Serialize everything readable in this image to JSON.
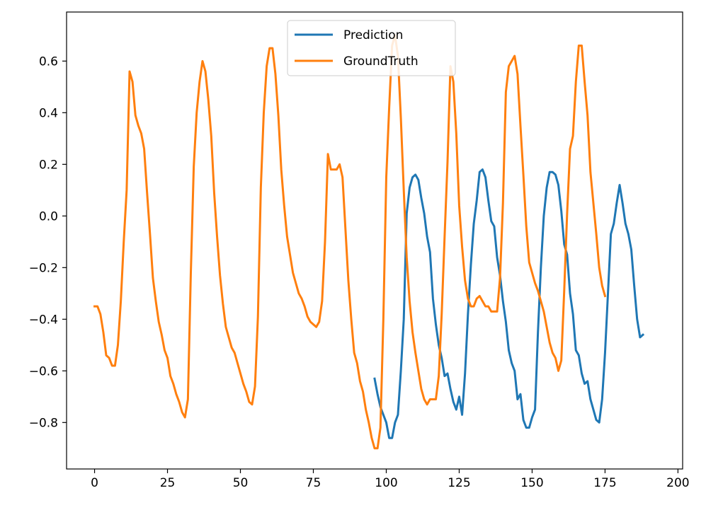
{
  "chart_data": {
    "type": "line",
    "title": "",
    "xlabel": "",
    "ylabel": "",
    "xlim": [
      -9.6,
      201.6
    ],
    "ylim": [
      -0.98,
      0.79
    ],
    "xticks": [
      0,
      25,
      50,
      75,
      100,
      125,
      150,
      175,
      200
    ],
    "yticks": [
      -0.8,
      -0.6,
      -0.4,
      -0.2,
      0.0,
      0.2,
      0.4,
      0.6
    ],
    "xtick_labels": [
      "0",
      "25",
      "50",
      "75",
      "100",
      "125",
      "150",
      "175",
      "200"
    ],
    "ytick_labels": [
      "−0.8",
      "−0.6",
      "−0.4",
      "−0.2",
      "0.0",
      "0.2",
      "0.4",
      "0.6"
    ],
    "grid": false,
    "legend": {
      "placement": "top-center"
    },
    "series": [
      {
        "name": "Prediction",
        "color": "#1f77b4",
        "points": [
          [
            96,
            -0.63
          ],
          [
            97,
            -0.69
          ],
          [
            98,
            -0.74
          ],
          [
            99,
            -0.77
          ],
          [
            100,
            -0.8
          ],
          [
            101,
            -0.86
          ],
          [
            102,
            -0.86
          ],
          [
            103,
            -0.8
          ],
          [
            104,
            -0.77
          ],
          [
            105,
            -0.6
          ],
          [
            106,
            -0.4
          ],
          [
            107,
            0.01
          ],
          [
            108,
            0.11
          ],
          [
            109,
            0.15
          ],
          [
            110,
            0.16
          ],
          [
            111,
            0.14
          ],
          [
            112,
            0.07
          ],
          [
            113,
            0.01
          ],
          [
            114,
            -0.08
          ],
          [
            115,
            -0.14
          ],
          [
            116,
            -0.32
          ],
          [
            117,
            -0.42
          ],
          [
            118,
            -0.5
          ],
          [
            119,
            -0.55
          ],
          [
            120,
            -0.62
          ],
          [
            121,
            -0.61
          ],
          [
            122,
            -0.67
          ],
          [
            123,
            -0.72
          ],
          [
            124,
            -0.75
          ],
          [
            125,
            -0.7
          ],
          [
            126,
            -0.77
          ],
          [
            127,
            -0.61
          ],
          [
            128,
            -0.38
          ],
          [
            129,
            -0.19
          ],
          [
            130,
            -0.03
          ],
          [
            131,
            0.06
          ],
          [
            132,
            0.17
          ],
          [
            133,
            0.18
          ],
          [
            134,
            0.15
          ],
          [
            135,
            0.06
          ],
          [
            136,
            -0.02
          ],
          [
            137,
            -0.04
          ],
          [
            138,
            -0.16
          ],
          [
            139,
            -0.23
          ],
          [
            140,
            -0.33
          ],
          [
            141,
            -0.41
          ],
          [
            142,
            -0.52
          ],
          [
            143,
            -0.57
          ],
          [
            144,
            -0.6
          ],
          [
            145,
            -0.71
          ],
          [
            146,
            -0.69
          ],
          [
            147,
            -0.79
          ],
          [
            148,
            -0.82
          ],
          [
            149,
            -0.82
          ],
          [
            150,
            -0.78
          ],
          [
            151,
            -0.75
          ],
          [
            152,
            -0.45
          ],
          [
            153,
            -0.2
          ],
          [
            154,
            0.0
          ],
          [
            155,
            0.11
          ],
          [
            156,
            0.17
          ],
          [
            157,
            0.17
          ],
          [
            158,
            0.16
          ],
          [
            159,
            0.12
          ],
          [
            160,
            0.02
          ],
          [
            161,
            -0.11
          ],
          [
            162,
            -0.15
          ],
          [
            163,
            -0.3
          ],
          [
            164,
            -0.38
          ],
          [
            165,
            -0.52
          ],
          [
            166,
            -0.54
          ],
          [
            167,
            -0.61
          ],
          [
            168,
            -0.65
          ],
          [
            169,
            -0.64
          ],
          [
            170,
            -0.71
          ],
          [
            171,
            -0.75
          ],
          [
            172,
            -0.79
          ],
          [
            173,
            -0.8
          ],
          [
            174,
            -0.71
          ],
          [
            175,
            -0.53
          ],
          [
            176,
            -0.3
          ],
          [
            177,
            -0.07
          ],
          [
            178,
            -0.03
          ],
          [
            179,
            0.05
          ],
          [
            180,
            0.12
          ],
          [
            181,
            0.05
          ],
          [
            182,
            -0.03
          ],
          [
            183,
            -0.07
          ],
          [
            184,
            -0.13
          ],
          [
            185,
            -0.27
          ],
          [
            186,
            -0.4
          ],
          [
            187,
            -0.47
          ],
          [
            188,
            -0.46
          ]
        ]
      },
      {
        "name": "GroundTruth",
        "color": "#ff7f0e",
        "points": [
          [
            0,
            -0.35
          ],
          [
            1,
            -0.35
          ],
          [
            2,
            -0.38
          ],
          [
            3,
            -0.45
          ],
          [
            4,
            -0.54
          ],
          [
            5,
            -0.55
          ],
          [
            6,
            -0.58
          ],
          [
            7,
            -0.58
          ],
          [
            8,
            -0.5
          ],
          [
            9,
            -0.33
          ],
          [
            10,
            -0.1
          ],
          [
            11,
            0.1
          ],
          [
            12,
            0.56
          ],
          [
            13,
            0.52
          ],
          [
            14,
            0.39
          ],
          [
            15,
            0.35
          ],
          [
            16,
            0.32
          ],
          [
            17,
            0.26
          ],
          [
            18,
            0.09
          ],
          [
            19,
            -0.07
          ],
          [
            20,
            -0.24
          ],
          [
            21,
            -0.33
          ],
          [
            22,
            -0.41
          ],
          [
            23,
            -0.46
          ],
          [
            24,
            -0.52
          ],
          [
            25,
            -0.55
          ],
          [
            26,
            -0.62
          ],
          [
            27,
            -0.65
          ],
          [
            28,
            -0.69
          ],
          [
            29,
            -0.72
          ],
          [
            30,
            -0.76
          ],
          [
            31,
            -0.78
          ],
          [
            32,
            -0.71
          ],
          [
            33,
            -0.22
          ],
          [
            34,
            0.19
          ],
          [
            35,
            0.4
          ],
          [
            36,
            0.52
          ],
          [
            37,
            0.6
          ],
          [
            38,
            0.56
          ],
          [
            39,
            0.45
          ],
          [
            40,
            0.31
          ],
          [
            41,
            0.09
          ],
          [
            42,
            -0.08
          ],
          [
            43,
            -0.23
          ],
          [
            44,
            -0.34
          ],
          [
            45,
            -0.43
          ],
          [
            46,
            -0.47
          ],
          [
            47,
            -0.51
          ],
          [
            48,
            -0.53
          ],
          [
            49,
            -0.57
          ],
          [
            50,
            -0.61
          ],
          [
            51,
            -0.65
          ],
          [
            52,
            -0.68
          ],
          [
            53,
            -0.72
          ],
          [
            54,
            -0.73
          ],
          [
            55,
            -0.66
          ],
          [
            56,
            -0.39
          ],
          [
            57,
            0.11
          ],
          [
            58,
            0.4
          ],
          [
            59,
            0.58
          ],
          [
            60,
            0.65
          ],
          [
            61,
            0.65
          ],
          [
            62,
            0.55
          ],
          [
            63,
            0.39
          ],
          [
            64,
            0.18
          ],
          [
            65,
            0.04
          ],
          [
            66,
            -0.08
          ],
          [
            67,
            -0.15
          ],
          [
            68,
            -0.22
          ],
          [
            69,
            -0.26
          ],
          [
            70,
            -0.3
          ],
          [
            71,
            -0.32
          ],
          [
            72,
            -0.35
          ],
          [
            73,
            -0.39
          ],
          [
            74,
            -0.41
          ],
          [
            75,
            -0.42
          ],
          [
            76,
            -0.43
          ],
          [
            77,
            -0.41
          ],
          [
            78,
            -0.33
          ],
          [
            79,
            -0.1
          ],
          [
            80,
            0.24
          ],
          [
            81,
            0.18
          ],
          [
            82,
            0.18
          ],
          [
            83,
            0.18
          ],
          [
            84,
            0.2
          ],
          [
            85,
            0.15
          ],
          [
            86,
            -0.05
          ],
          [
            87,
            -0.25
          ],
          [
            88,
            -0.4
          ],
          [
            89,
            -0.53
          ],
          [
            90,
            -0.57
          ],
          [
            91,
            -0.64
          ],
          [
            92,
            -0.68
          ],
          [
            93,
            -0.75
          ],
          [
            94,
            -0.8
          ],
          [
            95,
            -0.86
          ],
          [
            96,
            -0.9
          ],
          [
            97,
            -0.9
          ],
          [
            98,
            -0.82
          ],
          [
            99,
            -0.4
          ],
          [
            100,
            0.15
          ],
          [
            101,
            0.42
          ],
          [
            102,
            0.66
          ],
          [
            103,
            0.7
          ],
          [
            104,
            0.62
          ],
          [
            105,
            0.38
          ],
          [
            106,
            0.1
          ],
          [
            107,
            -0.16
          ],
          [
            108,
            -0.33
          ],
          [
            109,
            -0.45
          ],
          [
            110,
            -0.53
          ],
          [
            111,
            -0.6
          ],
          [
            112,
            -0.67
          ],
          [
            113,
            -0.71
          ],
          [
            114,
            -0.73
          ],
          [
            115,
            -0.71
          ],
          [
            116,
            -0.71
          ],
          [
            117,
            -0.71
          ],
          [
            118,
            -0.62
          ],
          [
            119,
            -0.38
          ],
          [
            120,
            -0.08
          ],
          [
            121,
            0.21
          ],
          [
            122,
            0.58
          ],
          [
            123,
            0.52
          ],
          [
            124,
            0.32
          ],
          [
            125,
            0.04
          ],
          [
            126,
            -0.12
          ],
          [
            127,
            -0.25
          ],
          [
            128,
            -0.32
          ],
          [
            129,
            -0.35
          ],
          [
            130,
            -0.35
          ],
          [
            131,
            -0.32
          ],
          [
            132,
            -0.31
          ],
          [
            133,
            -0.33
          ],
          [
            134,
            -0.35
          ],
          [
            135,
            -0.35
          ],
          [
            136,
            -0.37
          ],
          [
            137,
            -0.37
          ],
          [
            138,
            -0.37
          ],
          [
            139,
            -0.24
          ],
          [
            140,
            0.05
          ],
          [
            141,
            0.48
          ],
          [
            142,
            0.58
          ],
          [
            143,
            0.6
          ],
          [
            144,
            0.62
          ],
          [
            145,
            0.55
          ],
          [
            146,
            0.35
          ],
          [
            147,
            0.16
          ],
          [
            148,
            -0.04
          ],
          [
            149,
            -0.18
          ],
          [
            150,
            -0.22
          ],
          [
            151,
            -0.26
          ],
          [
            152,
            -0.29
          ],
          [
            153,
            -0.33
          ],
          [
            154,
            -0.37
          ],
          [
            155,
            -0.43
          ],
          [
            156,
            -0.49
          ],
          [
            157,
            -0.53
          ],
          [
            158,
            -0.55
          ],
          [
            159,
            -0.6
          ],
          [
            160,
            -0.56
          ],
          [
            161,
            -0.29
          ],
          [
            162,
            0.01
          ],
          [
            163,
            0.26
          ],
          [
            164,
            0.31
          ],
          [
            165,
            0.52
          ],
          [
            166,
            0.66
          ],
          [
            167,
            0.66
          ],
          [
            168,
            0.52
          ],
          [
            169,
            0.39
          ],
          [
            170,
            0.17
          ],
          [
            171,
            0.05
          ],
          [
            172,
            -0.07
          ],
          [
            173,
            -0.2
          ],
          [
            174,
            -0.27
          ],
          [
            175,
            -0.31
          ]
        ]
      }
    ]
  }
}
